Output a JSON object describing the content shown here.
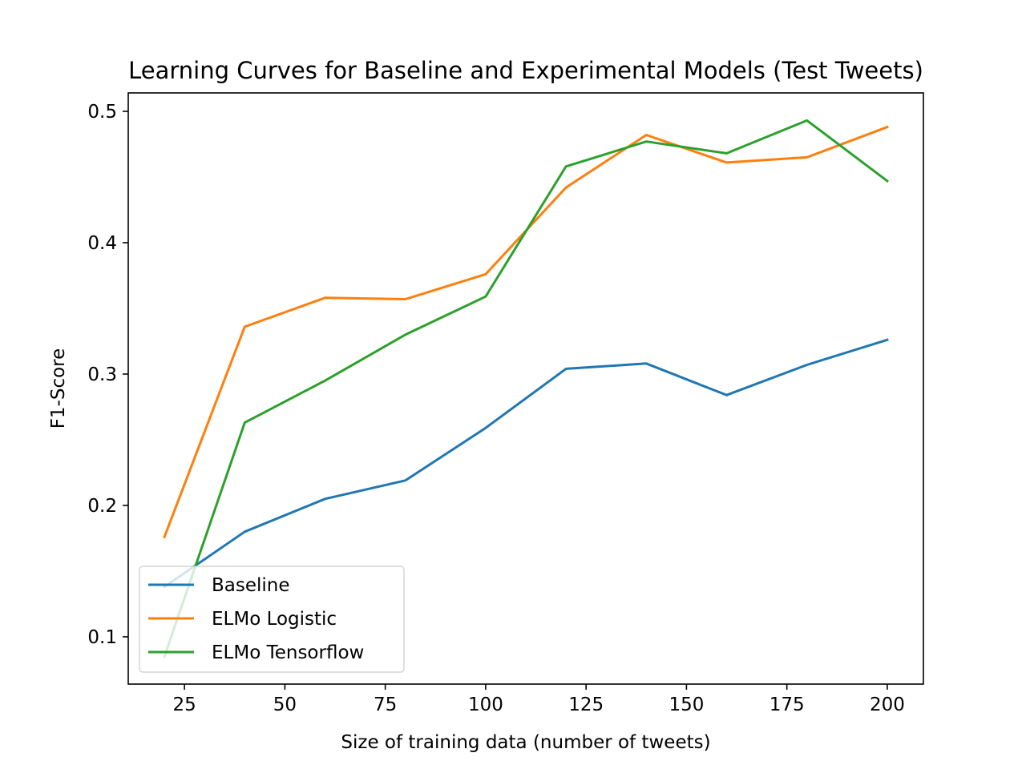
{
  "chart_data": {
    "type": "line",
    "title": "Learning Curves for Baseline and Experimental Models (Test Tweets)",
    "xlabel": "Size of training data (number of tweets)",
    "ylabel": "F1-Score",
    "x": [
      20,
      40,
      60,
      80,
      100,
      120,
      140,
      160,
      180,
      200
    ],
    "xlim": [
      11,
      209
    ],
    "ylim": [
      0.064,
      0.514
    ],
    "xticks": [
      25,
      50,
      75,
      100,
      125,
      150,
      175,
      200
    ],
    "yticks": [
      0.1,
      0.2,
      0.3,
      0.4,
      0.5
    ],
    "xtick_labels": [
      "25",
      "50",
      "75",
      "100",
      "125",
      "150",
      "175",
      "200"
    ],
    "ytick_labels": [
      "0.1",
      "0.2",
      "0.3",
      "0.4",
      "0.5"
    ],
    "grid": false,
    "legend_position": "lower left",
    "series": [
      {
        "name": "Baseline",
        "color": "#1f77b4",
        "values": [
          0.138,
          0.18,
          0.205,
          0.219,
          0.259,
          0.304,
          0.308,
          0.284,
          0.307,
          0.326
        ]
      },
      {
        "name": "ELMo Logistic",
        "color": "#ff7f0e",
        "values": [
          0.176,
          0.336,
          0.358,
          0.357,
          0.376,
          0.442,
          0.482,
          0.461,
          0.465,
          0.488
        ]
      },
      {
        "name": "ELMo Tensorflow",
        "color": "#2ca02c",
        "values": [
          0.085,
          0.263,
          0.295,
          0.33,
          0.359,
          0.458,
          0.477,
          0.468,
          0.493,
          0.447
        ]
      }
    ]
  }
}
